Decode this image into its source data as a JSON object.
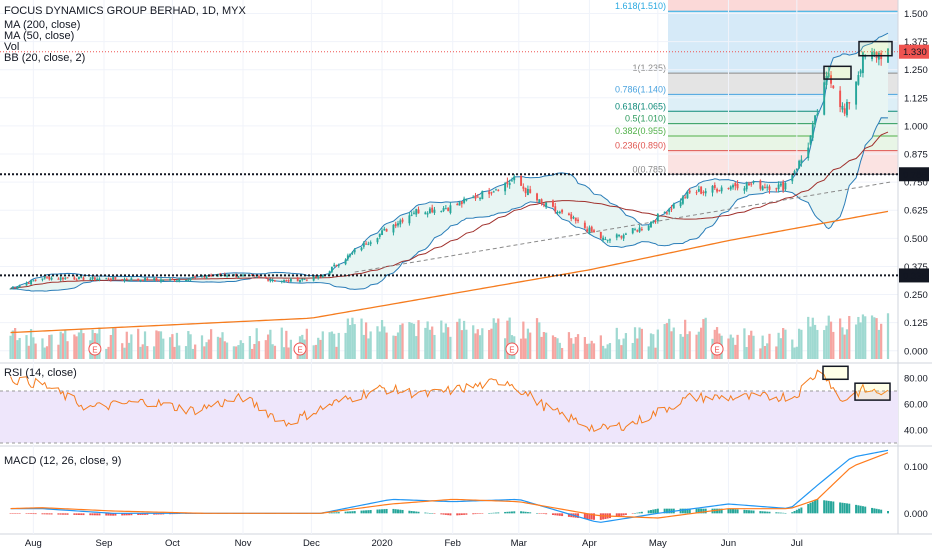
{
  "colors": {
    "up": "#26a69a",
    "down": "#ef5350",
    "ma200": "#f57c1f",
    "ma50": "#a0302c",
    "bb": "#2a7db8",
    "bb_fill": "#e8f5f3",
    "rsi": "#f57c1f",
    "rsi_band": "#eee6fb",
    "macd": "#2196f3",
    "signal": "#ff7b1c",
    "last_price": "#ef5350",
    "level_box": "#131722"
  },
  "legend": {
    "title": "FOCUS DYNAMICS GROUP BERHAD, 1D, MYX",
    "ma200": "MA (200, close)",
    "ma50": "MA (50, close)",
    "vol": "Vol",
    "bb": "BB (20, close, 2)",
    "rsi": "RSI (14, close)",
    "macd": "MACD (12, 26, close, 9)"
  },
  "price_axis": {
    "ticks": [
      "1.500",
      "1.375",
      "1.250",
      "1.125",
      "1.000",
      "0.875",
      "0.750",
      "0.625",
      "0.500",
      "0.375",
      "0.250",
      "0.125",
      "0.000"
    ],
    "last_price": "1.330",
    "level_high": "0.785",
    "level_low": "0.335"
  },
  "fib_labels": [
    "1.618(1.510)",
    "1(1.235)",
    "0.786(1.140)",
    "0.618(1.065)",
    "0.5(1.010)",
    "0.382(0.955)",
    "0.236(0.890)",
    "0(0.785)"
  ],
  "rsi_axis": [
    "80.00",
    "60.00",
    "40.00"
  ],
  "macd_axis": [
    "0.100",
    "0.000"
  ],
  "time_axis": [
    "Aug",
    "Sep",
    "Oct",
    "Nov",
    "Dec",
    "2020",
    "Feb",
    "Mar",
    "Apr",
    "May",
    "Jun",
    "Jul"
  ],
  "earnings_marker": "E",
  "chart_data": {
    "type": "candlestick",
    "symbol": "FOCUS DYNAMICS GROUP BERHAD",
    "interval": "1D",
    "exchange": "MYX",
    "last_price": 1.33,
    "horizontal_levels": [
      0.785,
      0.335
    ],
    "price_range": [
      0,
      1.56
    ],
    "fibonacci": [
      {
        "ratio": 1.618,
        "price": 1.51
      },
      {
        "ratio": 1,
        "price": 1.235
      },
      {
        "ratio": 0.786,
        "price": 1.14
      },
      {
        "ratio": 0.618,
        "price": 1.065
      },
      {
        "ratio": 0.5,
        "price": 1.01
      },
      {
        "ratio": 0.382,
        "price": 0.955
      },
      {
        "ratio": 0.236,
        "price": 0.89
      },
      {
        "ratio": 0,
        "price": 0.785
      }
    ],
    "close_anchors": [
      {
        "date": "2019-07-20",
        "close": 0.27
      },
      {
        "date": "2019-08-05",
        "close": 0.325
      },
      {
        "date": "2019-09-01",
        "close": 0.32
      },
      {
        "date": "2019-10-01",
        "close": 0.315
      },
      {
        "date": "2019-10-25",
        "close": 0.34
      },
      {
        "date": "2019-11-20",
        "close": 0.31
      },
      {
        "date": "2019-12-05",
        "close": 0.33
      },
      {
        "date": "2019-12-25",
        "close": 0.48
      },
      {
        "date": "2020-01-15",
        "close": 0.62
      },
      {
        "date": "2020-02-01",
        "close": 0.64
      },
      {
        "date": "2020-02-28",
        "close": 0.76
      },
      {
        "date": "2020-03-10",
        "close": 0.66
      },
      {
        "date": "2020-03-25",
        "close": 0.58
      },
      {
        "date": "2020-04-08",
        "close": 0.49
      },
      {
        "date": "2020-04-25",
        "close": 0.55
      },
      {
        "date": "2020-05-15",
        "close": 0.7
      },
      {
        "date": "2020-06-05",
        "close": 0.74
      },
      {
        "date": "2020-06-25",
        "close": 0.73
      },
      {
        "date": "2020-07-05",
        "close": 0.88
      },
      {
        "date": "2020-07-15",
        "close": 1.24
      },
      {
        "date": "2020-07-22",
        "close": 1.05
      },
      {
        "date": "2020-07-30",
        "close": 1.3
      },
      {
        "date": "2020-08-10",
        "close": 1.33
      }
    ],
    "ma200_anchors": [
      {
        "date": "2019-07-20",
        "value": 0.08
      },
      {
        "date": "2019-12-01",
        "value": 0.145
      },
      {
        "date": "2020-04-01",
        "value": 0.36
      },
      {
        "date": "2020-06-01",
        "value": 0.49
      },
      {
        "date": "2020-08-10",
        "value": 0.62
      }
    ],
    "rsi": {
      "range": [
        30,
        90
      ],
      "band": [
        30,
        70
      ],
      "levels": [
        70,
        30
      ],
      "anchors": [
        {
          "date": "2019-07-20",
          "value": 80
        },
        {
          "date": "2019-08-05",
          "value": 75
        },
        {
          "date": "2019-08-25",
          "value": 57
        },
        {
          "date": "2019-09-20",
          "value": 62
        },
        {
          "date": "2019-10-10",
          "value": 55
        },
        {
          "date": "2019-11-01",
          "value": 65
        },
        {
          "date": "2019-11-20",
          "value": 45
        },
        {
          "date": "2019-12-10",
          "value": 60
        },
        {
          "date": "2020-01-01",
          "value": 72
        },
        {
          "date": "2020-01-20",
          "value": 67
        },
        {
          "date": "2020-02-25",
          "value": 78
        },
        {
          "date": "2020-03-15",
          "value": 55
        },
        {
          "date": "2020-04-05",
          "value": 40
        },
        {
          "date": "2020-04-20",
          "value": 45
        },
        {
          "date": "2020-05-15",
          "value": 65
        },
        {
          "date": "2020-06-10",
          "value": 65
        },
        {
          "date": "2020-06-30",
          "value": 66
        },
        {
          "date": "2020-07-12",
          "value": 88
        },
        {
          "date": "2020-07-20",
          "value": 62
        },
        {
          "date": "2020-07-30",
          "value": 71
        },
        {
          "date": "2020-08-10",
          "value": 68
        }
      ]
    },
    "macd": {
      "range": [
        -0.04,
        0.14
      ],
      "anchors": [
        {
          "date": "2019-07-20",
          "macd": 0.01,
          "signal": 0.01
        },
        {
          "date": "2019-08-05",
          "macd": 0.01,
          "signal": 0.012
        },
        {
          "date": "2019-09-05",
          "macd": 0.0,
          "signal": 0.005
        },
        {
          "date": "2019-10-15",
          "macd": 0.0,
          "signal": 0.0
        },
        {
          "date": "2019-12-05",
          "macd": 0.0,
          "signal": 0.0
        },
        {
          "date": "2020-01-05",
          "macd": 0.03,
          "signal": 0.02
        },
        {
          "date": "2020-02-01",
          "macd": 0.025,
          "signal": 0.03
        },
        {
          "date": "2020-03-01",
          "macd": 0.03,
          "signal": 0.025
        },
        {
          "date": "2020-04-05",
          "macd": -0.02,
          "signal": -0.005
        },
        {
          "date": "2020-05-01",
          "macd": 0.0,
          "signal": -0.01
        },
        {
          "date": "2020-06-01",
          "macd": 0.02,
          "signal": 0.01
        },
        {
          "date": "2020-06-28",
          "macd": 0.01,
          "signal": 0.01
        },
        {
          "date": "2020-07-10",
          "macd": 0.06,
          "signal": 0.03
        },
        {
          "date": "2020-07-25",
          "macd": 0.12,
          "signal": 0.1
        },
        {
          "date": "2020-08-10",
          "macd": 0.135,
          "signal": 0.13
        }
      ]
    }
  }
}
